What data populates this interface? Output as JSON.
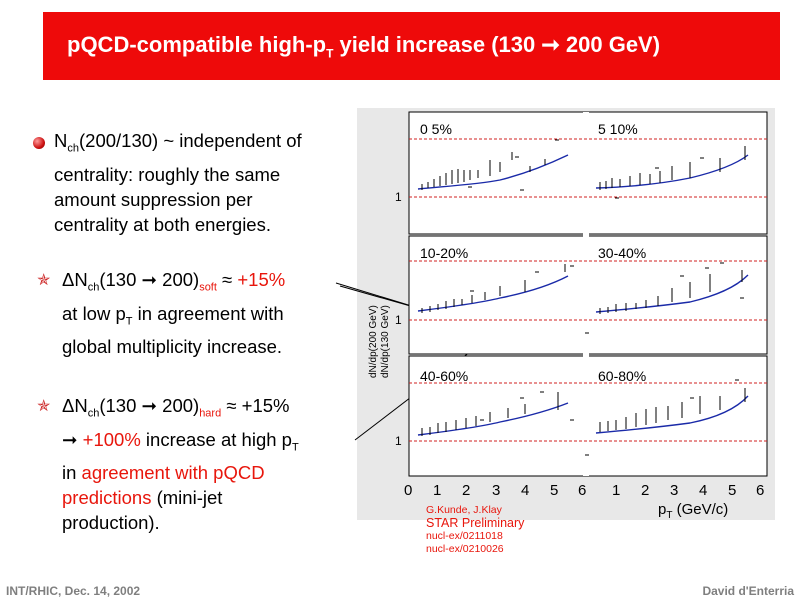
{
  "slide": {
    "title_main": "pQCD-compatible high-p",
    "title_sub": "T",
    "title_rest": " yield increase (130 ➞ 200 GeV)",
    "footer_left": "INT/RHIC, Dec. 14, 2002",
    "footer_right": "David d'Enterria",
    "accent_color": "#ee0a0a"
  },
  "bullets": {
    "b1_line1_a": "N",
    "b1_line1_sub": "ch",
    "b1_line1_b": "(200/130) ~ independent of",
    "b1_line2": "centrality: roughly the same",
    "b1_line3": "amount suppression per",
    "b1_line4": "centrality at both energies.",
    "b2_line1_a": "ΔN",
    "b2_line1_sub": "ch",
    "b2_line1_b": "(130 ➞ 200)",
    "b2_line1_sub2": "soft",
    "b2_line1_c": " ≈ ",
    "b2_line1_red": "+15%",
    "b2_line2_a": "at low p",
    "b2_line2_sub": "T",
    "b2_line2_b": " in agreement with",
    "b2_line3": "global multiplicity increase.",
    "b3_line1_a": "ΔN",
    "b3_line1_sub": "ch",
    "b3_line1_b": "(130 ➞ 200)",
    "b3_line1_sub2": "hard",
    "b3_line1_c": " ≈ +15%",
    "b3_line2_a": "➞ ",
    "b3_line2_red": "+100%",
    "b3_line2_b": " increase at high p",
    "b3_line2_sub": "T",
    "b3_line3_a": "in ",
    "b3_line3_red": "agreement with pQCD",
    "b4_red": "predictions",
    "b4_b": " (mini-jet",
    "b5": "production)."
  },
  "figure": {
    "panels": [
      "0 5%",
      "5 10%",
      "10-20%",
      "30-40%",
      "40-60%",
      "60-80%"
    ],
    "ylabel_1": "dN/dp",
    "ylabel_2": "(200 GeV)",
    "ylabel_3": "(130 GeV)",
    "ytick": "1",
    "xticks_left": [
      "0",
      "1",
      "2",
      "3",
      "4",
      "5",
      "6"
    ],
    "xticks_right": [
      "1",
      "2",
      "3",
      "4",
      "5",
      "6"
    ],
    "xlabel_a": "p",
    "xlabel_sub": "T",
    "xlabel_b": " (GeV/c)"
  },
  "caption": {
    "authors": "G.Kunde, J.Klay",
    "prelim": "STAR Preliminary",
    "ref1": "nucl-ex/0211018",
    "ref2": "nucl-ex/0210026"
  }
}
